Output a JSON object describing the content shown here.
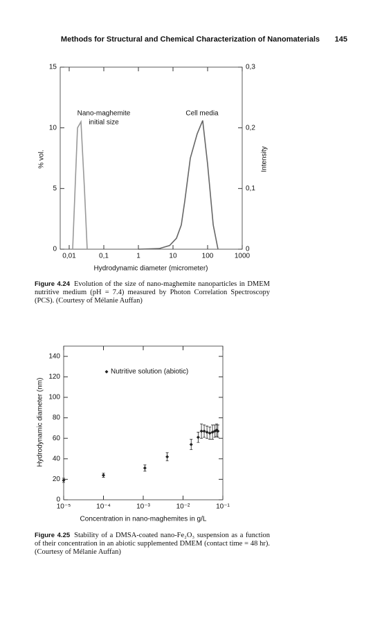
{
  "header": {
    "title": "Methods for Structural and Chemical Characterization of Nanomaterials",
    "page": "145"
  },
  "chart_data": [
    {
      "type": "line",
      "xscale": "log",
      "xlim": [
        0.0055,
        1000
      ],
      "xticks": [
        {
          "value": 0.01,
          "label": "0,01"
        },
        {
          "value": 0.1,
          "label": "0,1"
        },
        1,
        10,
        100,
        1000
      ],
      "ylim": [
        0,
        15
      ],
      "yticks": [
        0,
        5,
        10,
        15
      ],
      "y2lim": [
        0,
        0.3
      ],
      "y2ticks": [
        {
          "value": 0,
          "label": "0"
        },
        {
          "value": 0.1,
          "label": "0,1"
        },
        {
          "value": 0.2,
          "label": "0,2"
        },
        {
          "value": 0.3,
          "label": "0,3"
        }
      ],
      "xlabel": "Hydrodynamic diameter (micrometer)",
      "ylabel": "% vol.",
      "y2label": "Intensity",
      "annotations": [
        [
          "Nano-maghemite",
          "initial size"
        ],
        [
          "Cell media"
        ]
      ],
      "series": [
        {
          "color": "#999999",
          "x": [
            0.0126,
            0.0174,
            0.0219,
            0.0275,
            0.0331
          ],
          "values": [
            0,
            10,
            10.5,
            5,
            0
          ]
        },
        {
          "color": "#666666",
          "x": [
            1,
            4,
            8,
            12.6,
            17.4,
            22,
            31.6,
            50,
            72,
            100,
            145,
            200
          ],
          "values": [
            0,
            0.05,
            0.3,
            0.9,
            2,
            4,
            7.5,
            9.5,
            10.6,
            7,
            2,
            0
          ]
        }
      ]
    },
    {
      "type": "scatter",
      "xscale": "log",
      "xlim": [
        1e-05,
        0.1
      ],
      "xticks": [
        {
          "value": 1e-05,
          "label": "10⁻⁵"
        },
        {
          "value": 0.0001,
          "label": "10⁻⁴"
        },
        {
          "value": 0.001,
          "label": "10⁻³"
        },
        {
          "value": 0.01,
          "label": "10⁻²"
        },
        {
          "value": 0.1,
          "label": "10⁻¹"
        }
      ],
      "ylim": [
        0,
        150
      ],
      "yticks": [
        0,
        20,
        40,
        60,
        80,
        100,
        120,
        140
      ],
      "xlabel": "Concentration in nano-maghemites in g/L",
      "ylabel": "Hydrodynamic diameter (nm)",
      "series": [
        {
          "name": "Nutritive solution (abiotic)",
          "color": "#222222",
          "x": [
            1e-05,
            0.0001,
            0.0011,
            0.004,
            0.016,
            0.024,
            0.029,
            0.034,
            0.04,
            0.047,
            0.055,
            0.063,
            0.07,
            0.075
          ],
          "values": [
            19,
            24,
            31,
            42,
            54,
            61,
            67,
            67,
            66,
            65,
            66,
            67,
            68,
            67
          ],
          "errors": [
            2,
            2,
            3,
            4,
            5,
            5,
            7,
            6,
            6,
            6,
            7,
            6,
            6,
            6
          ]
        }
      ]
    }
  ],
  "captions": [
    {
      "label": "Figure 4.24",
      "text": "Evolution of the size of nano-maghemite nanoparticles in DMEM nutritive medium (pH = 7.4) measured by Photon Correlation Spectroscopy (PCS). (Courtesy of Mélanie Auffan)"
    },
    {
      "label": "Figure 4.25",
      "text": "Stability of a DMSA-coated nano-Fe₂O₃ suspension as a function of their concentration in an abiotic supplemented DMEM (contact time = 48 hr). (Courtesy of Mélanie Auffan)"
    }
  ]
}
